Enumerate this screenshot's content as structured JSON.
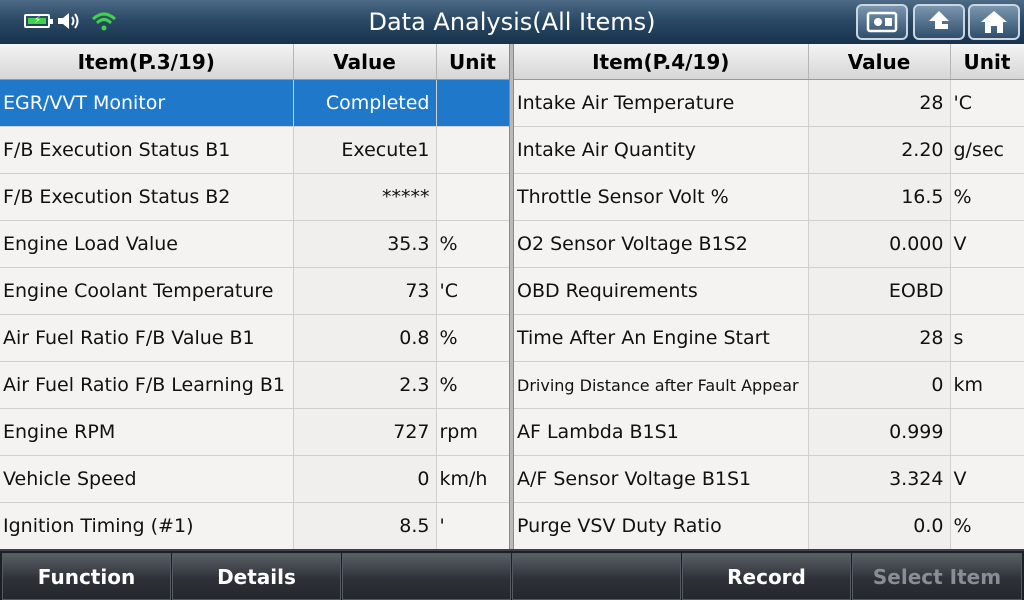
{
  "header": {
    "title": "Data Analysis(All Items)"
  },
  "status_icons": [
    "battery-charging-icon",
    "speaker-icon",
    "wifi-icon"
  ],
  "toolbar_icons": [
    "screenshot-icon",
    "back-up-icon",
    "home-icon"
  ],
  "left_table": {
    "headers": [
      "Item(P.3/19)",
      "Value",
      "Unit"
    ],
    "rows": [
      {
        "item": "EGR/VVT Monitor",
        "value": "Completed",
        "unit": ""
      },
      {
        "item": "F/B Execution Status B1",
        "value": "Execute1",
        "unit": ""
      },
      {
        "item": "F/B Execution Status B2",
        "value": "*****",
        "unit": ""
      },
      {
        "item": "Engine Load Value",
        "value": "35.3",
        "unit": "%"
      },
      {
        "item": "Engine Coolant Temperature",
        "value": "73",
        "unit": "'C"
      },
      {
        "item": "Air Fuel Ratio F/B Value B1",
        "value": "0.8",
        "unit": "%"
      },
      {
        "item": "Air Fuel Ratio F/B Learning B1",
        "value": "2.3",
        "unit": "%"
      },
      {
        "item": "Engine RPM",
        "value": "727",
        "unit": "rpm"
      },
      {
        "item": "Vehicle Speed",
        "value": "0",
        "unit": "km/h"
      },
      {
        "item": "Ignition Timing (#1)",
        "value": "8.5",
        "unit": "'"
      }
    ]
  },
  "right_table": {
    "headers": [
      "Item(P.4/19)",
      "Value",
      "Unit"
    ],
    "rows": [
      {
        "item": "Intake Air Temperature",
        "value": "28",
        "unit": "'C"
      },
      {
        "item": "Intake Air Quantity",
        "value": "2.20",
        "unit": "g/sec"
      },
      {
        "item": "Throttle Sensor Volt %",
        "value": "16.5",
        "unit": "%"
      },
      {
        "item": "O2 Sensor Voltage B1S2",
        "value": "0.000",
        "unit": "V"
      },
      {
        "item": "OBD Requirements",
        "value": "EOBD",
        "unit": ""
      },
      {
        "item": "Time After An Engine Start",
        "value": "28",
        "unit": "s"
      },
      {
        "item": "Driving Distance after Fault Appear",
        "value": "0",
        "unit": "km"
      },
      {
        "item": "AF Lambda B1S1",
        "value": "0.999",
        "unit": ""
      },
      {
        "item": "A/F Sensor Voltage B1S1",
        "value": "3.324",
        "unit": "V"
      },
      {
        "item": "Purge VSV Duty Ratio",
        "value": "0.0",
        "unit": "%"
      }
    ]
  },
  "bottom_bar": {
    "buttons": [
      "Function",
      "Details",
      "",
      "",
      "Record",
      "Select Item"
    ]
  },
  "colors": {
    "selected_row": "#1f78c9",
    "title_bar": "#2b4a66",
    "battery_fill": "#3fd24a",
    "wifi": "#3fd24a"
  }
}
